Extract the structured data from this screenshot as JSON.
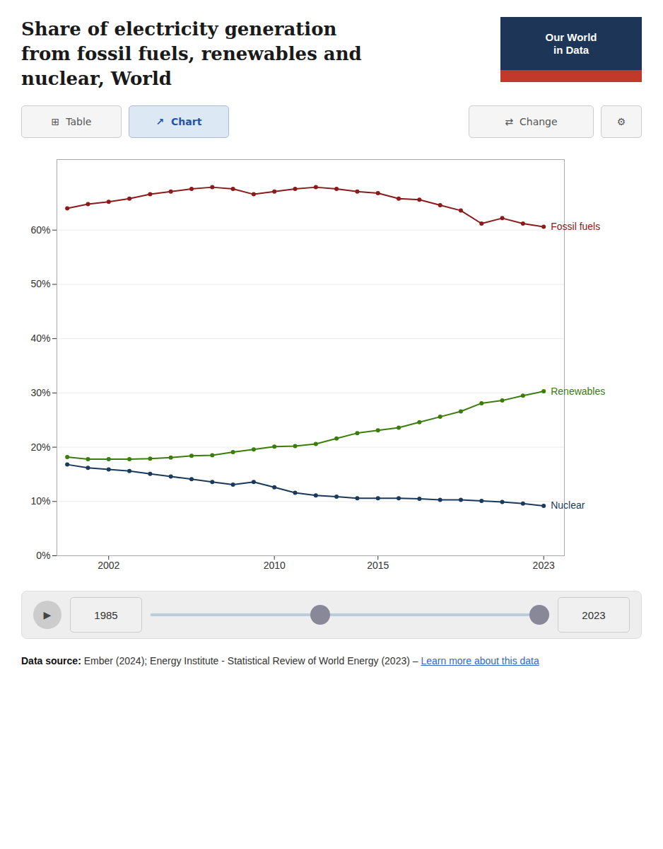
{
  "chart_data": {
    "type": "line",
    "title": "Share of electricity generation\nfrom fossil fuels, renewables and\nnuclear, World",
    "x": [
      2000,
      2001,
      2002,
      2003,
      2004,
      2005,
      2006,
      2007,
      2008,
      2009,
      2010,
      2011,
      2012,
      2013,
      2014,
      2015,
      2016,
      2017,
      2018,
      2019,
      2020,
      2021,
      2022,
      2023
    ],
    "series": [
      {
        "name": "Fossil fuels",
        "color": "#8b1a1a",
        "values": [
          64.0,
          64.8,
          65.2,
          65.8,
          66.6,
          67.1,
          67.6,
          67.9,
          67.6,
          66.6,
          67.1,
          67.6,
          67.9,
          67.6,
          67.1,
          66.8,
          65.8,
          65.6,
          64.6,
          63.6,
          61.2,
          62.2,
          61.2,
          60.6
        ]
      },
      {
        "name": "Renewables",
        "color": "#3a7d0a",
        "values": [
          18.2,
          17.8,
          17.8,
          17.8,
          17.9,
          18.1,
          18.4,
          18.5,
          19.1,
          19.6,
          20.1,
          20.2,
          20.6,
          21.6,
          22.6,
          23.1,
          23.6,
          24.6,
          25.6,
          26.6,
          28.1,
          28.6,
          29.5,
          30.3
        ]
      },
      {
        "name": "Nuclear",
        "color": "#1a3a5c",
        "values": [
          16.8,
          16.2,
          15.9,
          15.6,
          15.1,
          14.6,
          14.1,
          13.6,
          13.1,
          13.6,
          12.6,
          11.6,
          11.1,
          10.9,
          10.6,
          10.6,
          10.6,
          10.5,
          10.3,
          10.3,
          10.1,
          9.9,
          9.6,
          9.2
        ]
      }
    ],
    "xlim": [
      1999.5,
      2024.0
    ],
    "xticks": [
      2002,
      2010,
      2015,
      2023
    ],
    "ylim": [
      0,
      73
    ],
    "yticks": [
      {
        "value": 0,
        "label": "0%"
      },
      {
        "value": 10,
        "label": "10%"
      },
      {
        "value": 20,
        "label": "20%"
      },
      {
        "value": 30,
        "label": "30%"
      },
      {
        "value": 40,
        "label": "40%"
      },
      {
        "value": 50,
        "label": "50%"
      },
      {
        "value": 60,
        "label": "60%"
      }
    ],
    "grid": true,
    "marker": "circle",
    "annotations": [
      "Our World\nin Data",
      "⊞  Table",
      "↗  Chart",
      "⇄  Change",
      "⚙",
      "▶",
      "1985",
      "2023",
      "Data source:",
      "Ember (2024); Energy Institute - Statistical Review of World Energy (2023) – ",
      "Learn more about this data"
    ]
  }
}
